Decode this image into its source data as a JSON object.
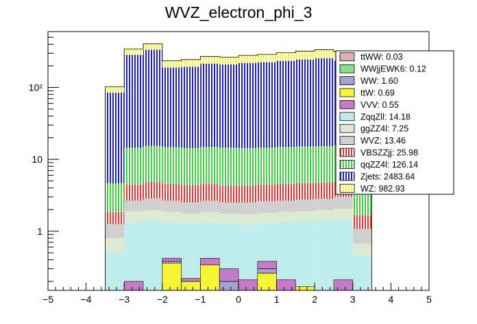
{
  "chart_data": {
    "type": "bar",
    "stacked": true,
    "title": "WVZ_electron_phi_3",
    "xlabel": "",
    "ylabel": "",
    "xlim": [
      -5,
      5
    ],
    "ylim": [
      0.15,
      600
    ],
    "y_scale": "log",
    "x_ticks": [
      "−5",
      "−4",
      "−3",
      "−2",
      "−1",
      "0",
      "1",
      "2",
      "3",
      "4",
      "5"
    ],
    "y_ticks": [
      "1",
      "10",
      "10²"
    ],
    "legend_position": "top-right",
    "x_edges": [
      -3.5,
      -3.0,
      -2.5,
      -2.0,
      -1.5,
      -1.0,
      -0.5,
      0.0,
      0.5,
      1.0,
      1.5,
      2.0,
      2.5,
      3.0,
      3.5
    ],
    "series": [
      {
        "name": "ZqqZll",
        "legend": "ZqqZll: 14.18",
        "color": "#7ee3e3",
        "hatch": "diag",
        "values": [
          0.52,
          1.35,
          1.4,
          1.35,
          1.3,
          1.35,
          1.3,
          1.25,
          1.3,
          1.35,
          1.4,
          1.4,
          1.45,
          0.45
        ]
      },
      {
        "name": "ggZZ4l",
        "legend": "ggZZ4l: 7.25",
        "color": "#b9dca4",
        "hatch": "diag",
        "values": [
          0.28,
          0.55,
          0.55,
          0.5,
          0.45,
          0.5,
          0.45,
          0.45,
          0.5,
          0.5,
          0.5,
          0.55,
          0.6,
          0.22
        ]
      },
      {
        "name": "WVZ",
        "legend": "WVZ: 13.46",
        "color": "#b3b3b3",
        "hatch": "cross",
        "values": [
          0.45,
          0.75,
          0.9,
          0.8,
          0.75,
          0.8,
          0.75,
          0.8,
          0.8,
          0.8,
          0.85,
          0.85,
          0.95,
          0.4
        ]
      },
      {
        "name": "VBSZZjj",
        "legend": "VBSZZjj: 25.98",
        "color": "#e33333",
        "hatch": "vert",
        "values": [
          0.6,
          1.8,
          2.0,
          1.9,
          1.85,
          1.9,
          1.8,
          1.8,
          1.85,
          1.9,
          1.9,
          1.95,
          2.0,
          0.6
        ]
      },
      {
        "name": "qqZZ4l",
        "legend": "qqZZ4l: 126.14",
        "color": "#3ad13a",
        "hatch": "vert",
        "values": [
          2.8,
          10.0,
          10.5,
          10.2,
          10.0,
          10.3,
          10.2,
          10.0,
          10.1,
          10.3,
          10.5,
          10.5,
          10.8,
          2.9
        ]
      },
      {
        "name": "Zjets",
        "legend": "Zjets: 2483.64",
        "color": "#1c1cc8",
        "hatch": "vert",
        "values": [
          80,
          270,
          320,
          175,
          180,
          200,
          195,
          205,
          210,
          220,
          230,
          240,
          220,
          50
        ]
      },
      {
        "name": "WZ",
        "legend": "WZ: 982.93",
        "color": "#f5f533",
        "hatch": "vert",
        "values": [
          18,
          60,
          70,
          45,
          50,
          55,
          55,
          60,
          65,
          70,
          75,
          80,
          80,
          20
        ]
      }
    ],
    "minor_bars": [
      {
        "bin_low": -3.0,
        "components": [
          {
            "name": "VVV",
            "value": 0.2
          }
        ]
      },
      {
        "bin_low": -2.0,
        "components": [
          {
            "name": "ttW",
            "value": 0.36
          },
          {
            "name": "WW",
            "value": 0.38
          },
          {
            "name": "VVV",
            "value": 0.42
          }
        ]
      },
      {
        "bin_low": -1.5,
        "components": [
          {
            "name": "ttW",
            "value": 0.2
          },
          {
            "name": "VVV",
            "value": 0.22
          }
        ]
      },
      {
        "bin_low": -1.0,
        "components": [
          {
            "name": "ttW",
            "value": 0.34
          },
          {
            "name": "VVV",
            "value": 0.42
          }
        ]
      },
      {
        "bin_low": -0.5,
        "components": [
          {
            "name": "WW",
            "value": 0.2
          },
          {
            "name": "VVV",
            "value": 0.3
          }
        ]
      },
      {
        "bin_low": 0.0,
        "components": [
          {
            "name": "VVV",
            "value": 0.21
          }
        ]
      },
      {
        "bin_low": 0.5,
        "components": [
          {
            "name": "ttW",
            "value": 0.26
          },
          {
            "name": "WW",
            "value": 0.3
          },
          {
            "name": "VVV",
            "value": 0.38
          }
        ]
      },
      {
        "bin_low": 1.0,
        "components": [
          {
            "name": "VVV",
            "value": 0.21
          }
        ]
      },
      {
        "bin_low": 1.5,
        "components": [
          {
            "name": "ttW",
            "value": 0.17
          }
        ]
      },
      {
        "bin_low": 2.5,
        "components": [
          {
            "name": "VVV",
            "value": 0.21
          }
        ]
      }
    ],
    "legend": [
      {
        "label": "ttWW: 0.03",
        "color": "#c77f8b",
        "hatch": "cross"
      },
      {
        "label": "WWjjEWK6: 0.12",
        "color": "#88e088",
        "hatch": "none"
      },
      {
        "label": "WW: 1.60",
        "color": "#6b6bb8",
        "hatch": "cross"
      },
      {
        "label": "ttW: 0.69",
        "color": "#f5f533",
        "hatch": "none"
      },
      {
        "label": "VVV: 0.55",
        "color": "#c77ac7",
        "hatch": "none"
      },
      {
        "label": "ZqqZll: 14.18",
        "color": "#7ee3e3",
        "hatch": "diag"
      },
      {
        "label": "ggZZ4l: 7.25",
        "color": "#b9dca4",
        "hatch": "diag"
      },
      {
        "label": "WVZ: 13.46",
        "color": "#b3b3b3",
        "hatch": "cross"
      },
      {
        "label": "VBSZZjj: 25.98",
        "color": "#e33333",
        "hatch": "vert"
      },
      {
        "label": "qqZZ4l: 126.14",
        "color": "#3ad13a",
        "hatch": "vert"
      },
      {
        "label": "Zjets: 2483.64",
        "color": "#1c1cc8",
        "hatch": "vert"
      },
      {
        "label": "WZ: 982.93",
        "color": "#f5f533",
        "hatch": "vert"
      }
    ]
  }
}
